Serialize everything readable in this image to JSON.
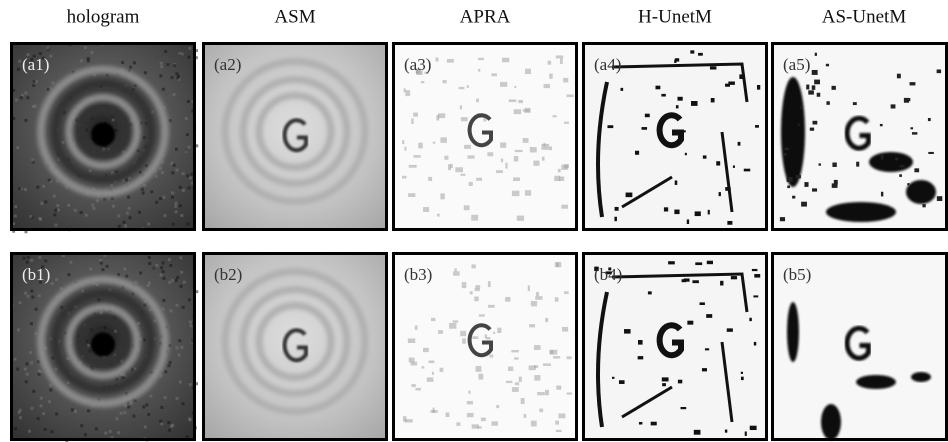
{
  "columns": [
    "hologram",
    "ASM",
    "APRA",
    "H-UnetM",
    "AS-UnetM"
  ],
  "panels": [
    [
      "(a1)",
      "(a2)",
      "(a3)",
      "(a4)",
      "(a5)"
    ],
    [
      "(b1)",
      "(b2)",
      "(b3)",
      "(b4)",
      "(b5)"
    ]
  ]
}
